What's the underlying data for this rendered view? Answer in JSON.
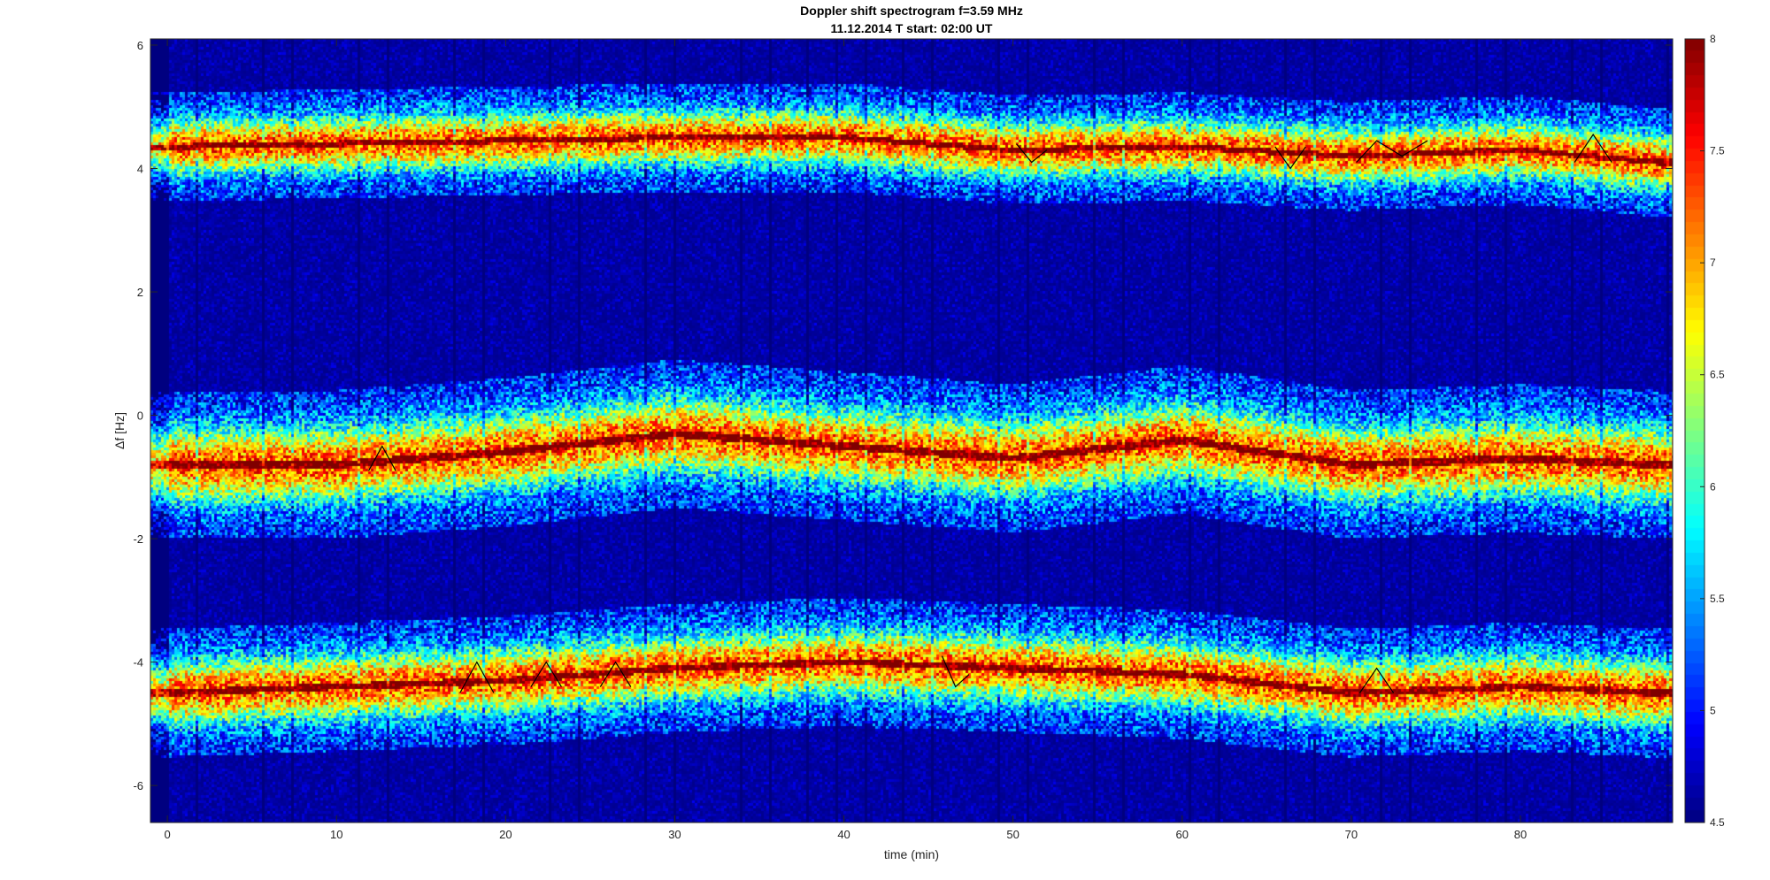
{
  "chart_data": {
    "type": "heatmap",
    "title": "Doppler shift spectrogram f=3.59 MHz",
    "subtitle": "11.12.2014   T start: 02:00 UT",
    "xlabel": "time (min)",
    "ylabel": "Δf [Hz]",
    "xlim": [
      -1,
      89
    ],
    "ylim": [
      -6.6,
      6.1
    ],
    "xticks": [
      0,
      10,
      20,
      30,
      40,
      50,
      60,
      70,
      80
    ],
    "yticks": [
      -6,
      -4,
      -2,
      0,
      2,
      4,
      6
    ],
    "colorbar": {
      "colormap": "jet",
      "clim": [
        4.5,
        8
      ],
      "ticks": [
        4.5,
        5,
        5.5,
        6,
        6.5,
        7,
        7.5,
        8
      ]
    },
    "grid": false,
    "bands": [
      {
        "name": "upper",
        "center": {
          "x": [
            0,
            10,
            20,
            30,
            40,
            50,
            60,
            70,
            80,
            88
          ],
          "y": [
            4.35,
            4.4,
            4.45,
            4.5,
            4.5,
            4.3,
            4.35,
            4.2,
            4.3,
            4.1
          ]
        },
        "half_width": 0.55
      },
      {
        "name": "middle",
        "center": {
          "x": [
            0,
            10,
            20,
            30,
            40,
            50,
            60,
            70,
            80,
            88
          ],
          "y": [
            -0.8,
            -0.8,
            -0.6,
            -0.3,
            -0.5,
            -0.7,
            -0.4,
            -0.8,
            -0.7,
            -0.8
          ]
        },
        "half_width": 0.75
      },
      {
        "name": "lower",
        "center": {
          "x": [
            0,
            10,
            20,
            30,
            40,
            50,
            60,
            70,
            80,
            88
          ],
          "y": [
            -4.5,
            -4.4,
            -4.3,
            -4.1,
            -4.0,
            -4.1,
            -4.2,
            -4.5,
            -4.4,
            -4.5
          ]
        },
        "half_width": 0.65
      }
    ],
    "traces": [
      {
        "x": [
          11.9,
          12.7,
          13.5
        ],
        "y": [
          -0.9,
          -0.5,
          -0.9
        ]
      },
      {
        "x": [
          17.3,
          18.3,
          19.3
        ],
        "y": [
          -4.5,
          -4.0,
          -4.5
        ]
      },
      {
        "x": [
          21.5,
          22.4,
          23.3
        ],
        "y": [
          -4.4,
          -4.0,
          -4.4
        ]
      },
      {
        "x": [
          25.6,
          26.5,
          27.4
        ],
        "y": [
          -4.4,
          -4.0,
          -4.4
        ]
      },
      {
        "x": [
          45.8,
          46.6,
          47.4
        ],
        "y": [
          -3.9,
          -4.4,
          -4.2
        ]
      },
      {
        "x": [
          50.2,
          51.1,
          52.0
        ],
        "y": [
          4.4,
          4.1,
          4.3
        ]
      },
      {
        "x": [
          65.5,
          66.4,
          67.3
        ],
        "y": [
          4.35,
          4.0,
          4.35
        ]
      },
      {
        "x": [
          70.3,
          71.5,
          73.0,
          74.5
        ],
        "y": [
          4.1,
          4.45,
          4.2,
          4.45
        ]
      },
      {
        "x": [
          83.2,
          84.3,
          85.4
        ],
        "y": [
          4.1,
          4.55,
          4.1
        ]
      },
      {
        "x": [
          70.5,
          71.5,
          72.5
        ],
        "y": [
          -4.5,
          -4.1,
          -4.5
        ]
      }
    ]
  }
}
